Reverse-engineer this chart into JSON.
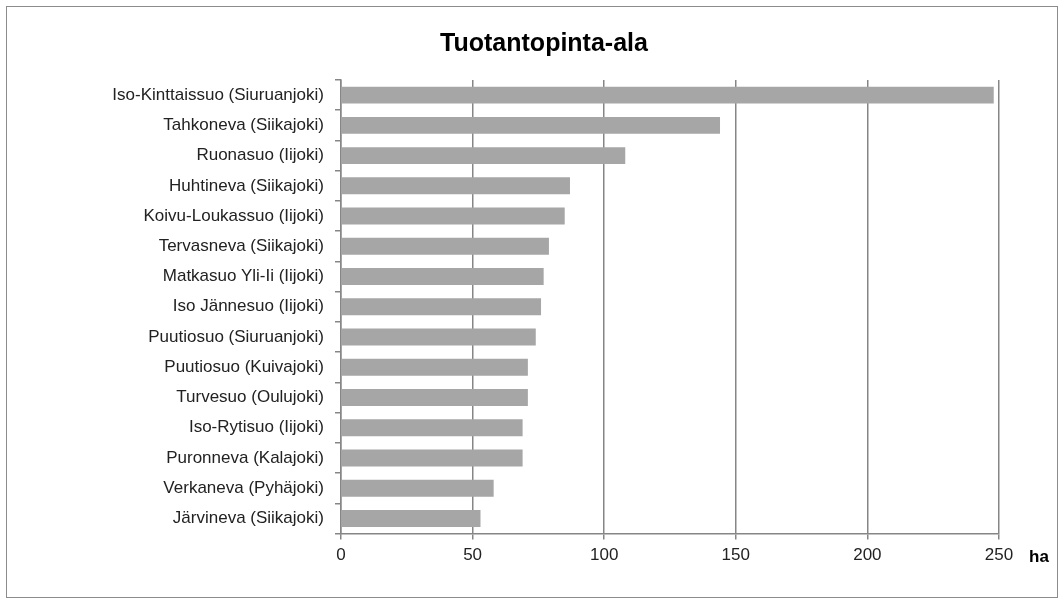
{
  "chart_data": {
    "type": "bar",
    "orientation": "horizontal",
    "title": "Tuotantopinta-ala",
    "xlabel": "ha",
    "categories": [
      "Iso-Kinttaissuo (Siuruanjoki)",
      "Tahkoneva (Siikajoki)",
      "Ruonasuo (Iijoki)",
      "Huhtineva (Siikajoki)",
      "Koivu-Loukassuo (Iijoki)",
      "Tervasneva (Siikajoki)",
      "Matkasuo Yli-Ii (Iijoki)",
      "Iso Jännesuo (Iijoki)",
      "Puutiosuo (Siuruanjoki)",
      "Puutiosuo (Kuivajoki)",
      "Turvesuo (Oulujoki)",
      "Iso-Rytisuo (Iijoki)",
      "Puronneva (Kalajoki)",
      "Verkaneva (Pyhäjoki)",
      "Järvineva (Siikajoki)"
    ],
    "values": [
      248,
      144,
      108,
      87,
      85,
      79,
      77,
      76,
      74,
      71,
      71,
      69,
      69,
      58,
      53
    ],
    "color": "#a6a6a6",
    "xlim": [
      0,
      250
    ],
    "xticks": [
      0,
      50,
      100,
      150,
      200,
      250
    ],
    "grid": "x"
  }
}
